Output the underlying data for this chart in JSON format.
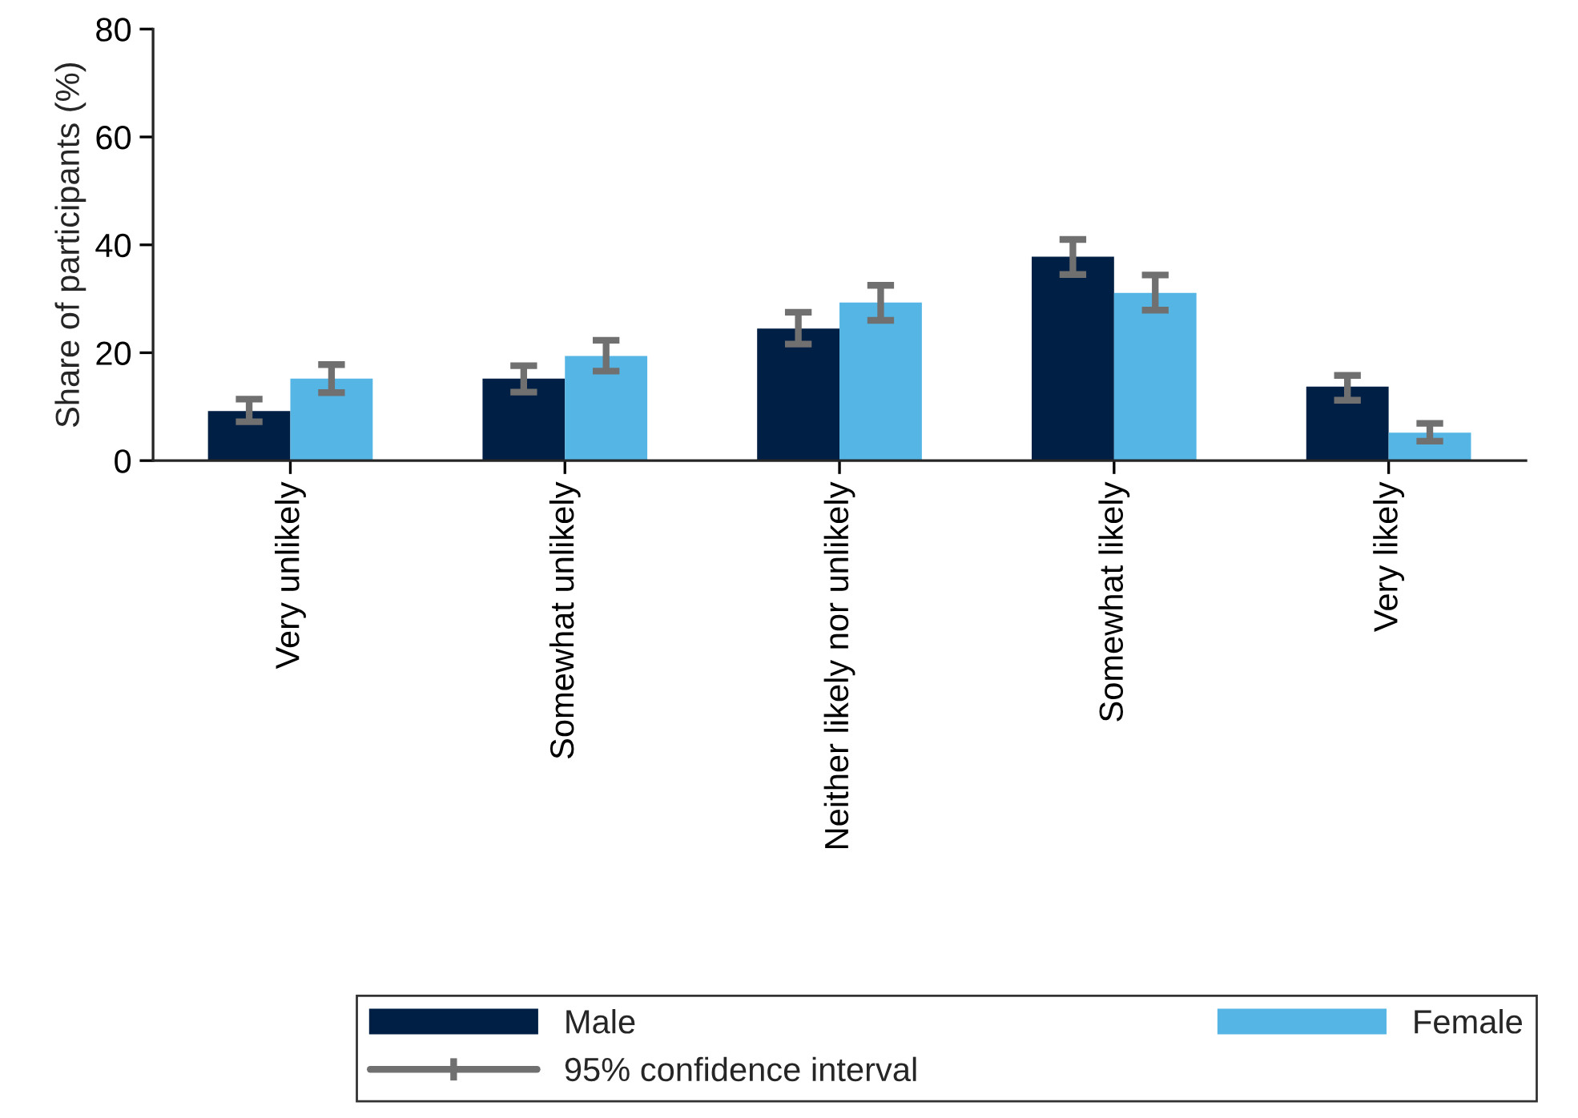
{
  "chart_data": {
    "type": "bar",
    "ylabel": "Share of participants (%)",
    "categories": [
      "Very unlikely",
      "Somewhat unlikely",
      "Neither likely nor unlikely",
      "Somewhat likely",
      "Very likely"
    ],
    "series": [
      {
        "name": "Male",
        "color": "#001f44",
        "values": [
          9.2,
          15.2,
          24.5,
          37.8,
          13.7
        ],
        "errors": [
          [
            7.2,
            11.4
          ],
          [
            12.7,
            17.6
          ],
          [
            21.6,
            27.5
          ],
          [
            34.5,
            41.0
          ],
          [
            11.2,
            15.8
          ]
        ]
      },
      {
        "name": "Female",
        "color": "#55b5e5",
        "values": [
          15.2,
          19.4,
          29.3,
          31.1,
          5.2
        ],
        "errors": [
          [
            12.6,
            17.8
          ],
          [
            16.6,
            22.3
          ],
          [
            26.0,
            32.5
          ],
          [
            27.9,
            34.4
          ],
          [
            3.6,
            6.9
          ]
        ]
      }
    ],
    "annotations": [
      "95% confidence interval"
    ],
    "ylim": [
      0,
      80
    ],
    "yticks": [
      0,
      20,
      40,
      60,
      80
    ],
    "grid": false,
    "legend": "bottom"
  }
}
